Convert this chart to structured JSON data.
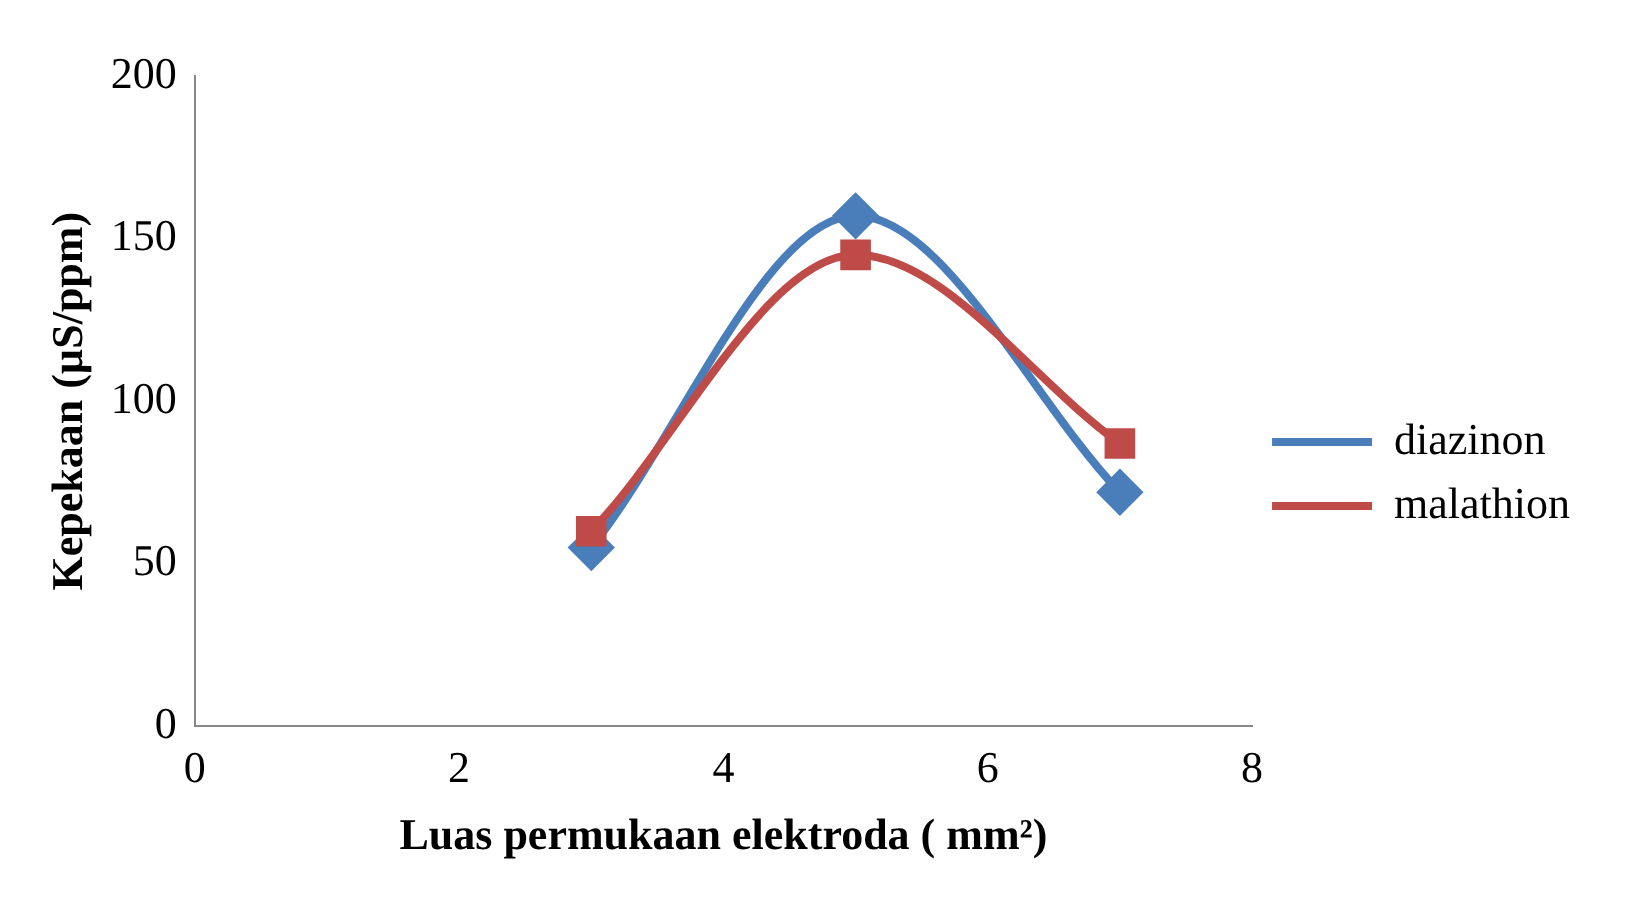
{
  "chart_data": {
    "type": "line",
    "xlabel": "Luas permukaan elektroda ( mm²)",
    "ylabel": "Kepekaan (µS/ppm)",
    "xlim": [
      0,
      8
    ],
    "xticks": [
      0,
      2,
      4,
      6,
      8
    ],
    "ylim": [
      0,
      200
    ],
    "yticks": [
      0,
      50,
      100,
      150,
      200
    ],
    "grid": false,
    "legend": "right",
    "series": [
      {
        "name": "diazinon",
        "color": "#4a7ebb",
        "x": [
          3,
          5,
          7
        ],
        "values": [
          55,
          157,
          72
        ],
        "marker": "diamond"
      },
      {
        "name": "malathion",
        "color": "#be4b48",
        "x": [
          3,
          5,
          7
        ],
        "values": [
          60,
          145,
          87
        ],
        "marker": "square"
      }
    ]
  }
}
